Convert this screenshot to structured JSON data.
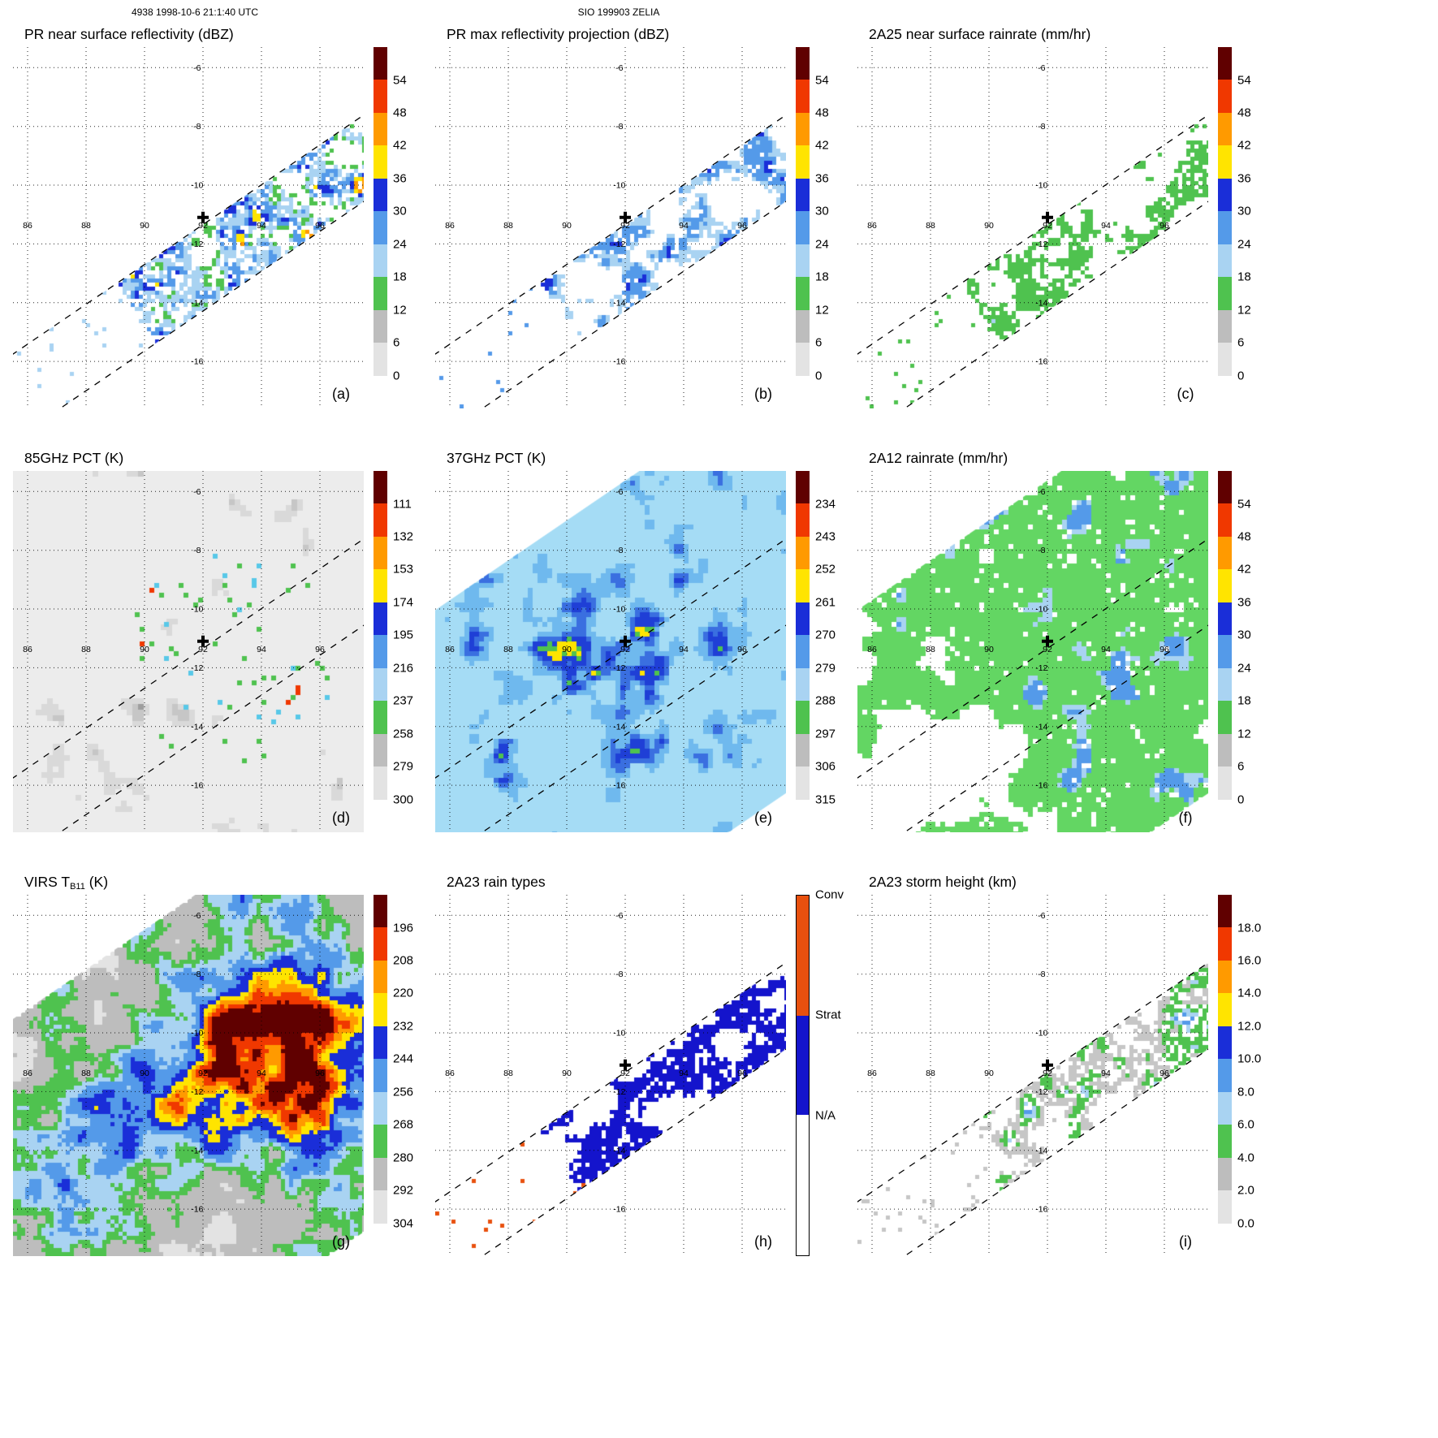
{
  "header": {
    "left": "4938 1998-10-6 21:1:40 UTC",
    "center": "SIO 199903 ZELIA"
  },
  "chart_data": {
    "type": "heatmap",
    "layout": "3x3 grid of satellite swath maps, each with a vertical colorbar on the right; dotted lat/lon graticule; dashed PR swath edge lines; bold plus sign at storm center",
    "axes": {
      "lon_ticks": [
        "86",
        "88",
        "90",
        "92",
        "94",
        "96"
      ],
      "lat_ticks": [
        "-6",
        "-8",
        "-10",
        "-12",
        "-14",
        "-16"
      ],
      "lon_values": [
        86,
        88,
        90,
        92,
        94,
        96
      ],
      "lat_values": [
        -6,
        -8,
        -10,
        -12,
        -14,
        -16
      ]
    },
    "storm_center": {
      "lon": 92,
      "lat": -11.1
    },
    "panels": [
      {
        "id": "a",
        "title": "PR near surface reflectivity (dBZ)",
        "letter": "(a)",
        "colorbar": "dbz",
        "swath": "narrow",
        "style": "pr_refl"
      },
      {
        "id": "b",
        "title": "PR max reflectivity projection (dBZ)",
        "letter": "(b)",
        "colorbar": "dbz",
        "swath": "narrow",
        "style": "pr_max"
      },
      {
        "id": "c",
        "title": "2A25 near surface rainrate (mm/hr)",
        "letter": "(c)",
        "colorbar": "dbz",
        "swath": "narrow",
        "style": "rain25"
      },
      {
        "id": "d",
        "title": "85GHz PCT (K)",
        "letter": "(d)",
        "colorbar": "pct85",
        "swath": "rect",
        "style": "pct85"
      },
      {
        "id": "e",
        "title": "37GHz PCT (K)",
        "letter": "(e)",
        "colorbar": "pct37",
        "swath": "wide",
        "style": "pct37"
      },
      {
        "id": "f",
        "title": "2A12 rainrate (mm/hr)",
        "letter": "(f)",
        "colorbar": "dbz",
        "swath": "wide",
        "style": "rain12"
      },
      {
        "id": "g",
        "title": "VIRS T",
        "title_sub": "B11",
        "title_post": " (K)",
        "letter": "(g)",
        "colorbar": "virs",
        "swath": "full",
        "style": "virs"
      },
      {
        "id": "h",
        "title": "2A23 rain types",
        "letter": "(h)",
        "colorbar": "raintype",
        "swath": "narrow",
        "style": "raintype"
      },
      {
        "id": "i",
        "title": "2A23 storm height (km)",
        "letter": "(i)",
        "colorbar": "height",
        "swath": "narrow",
        "style": "height"
      }
    ],
    "colorbars": {
      "dbz": {
        "labels": [
          "54",
          "48",
          "42",
          "36",
          "30",
          "24",
          "18",
          "12",
          "6",
          "0"
        ]
      },
      "pct85": {
        "labels": [
          "111",
          "132",
          "153",
          "174",
          "195",
          "216",
          "237",
          "258",
          "279",
          "300"
        ]
      },
      "pct37": {
        "labels": [
          "234",
          "243",
          "252",
          "261",
          "270",
          "279",
          "288",
          "297",
          "306",
          "315"
        ]
      },
      "virs": {
        "labels": [
          "196",
          "208",
          "220",
          "232",
          "244",
          "256",
          "268",
          "280",
          "292",
          "304"
        ]
      },
      "height": {
        "labels": [
          "18.0",
          "16.0",
          "14.0",
          "12.0",
          "10.0",
          "8.0",
          "6.0",
          "4.0",
          "2.0",
          "0.0"
        ]
      },
      "raintype": {
        "labels": [
          "Conv",
          "Strat",
          "N/A"
        ]
      }
    },
    "scale_colors_bottom_to_top": [
      "#ffffff",
      "#e3e3e3",
      "#bdbdbd",
      "#4fc24f",
      "#a9d3f2",
      "#549ae9",
      "#1a2ed8",
      "#ffe400",
      "#ff9a00",
      "#f03800",
      "#600000"
    ],
    "raintype_colors_top_to_bottom": [
      "#e8500e",
      "#1414cc",
      "#ffffff"
    ],
    "raintype_segment_heights_pct": [
      33.3,
      27.7,
      39.0
    ],
    "palette": {
      "white": "#ffffff",
      "gray1": "#e3e3e3",
      "gray2": "#bdbdbd",
      "gray3": "#9e9e9e",
      "grayc": "#c6c6c6",
      "grayd": "#d9d9d9",
      "green": "#4fc24f",
      "paleblue": "#a9d3f2",
      "midblue": "#549ae9",
      "darkblue": "#1a2ed8",
      "yellow": "#ffe400",
      "orange": "#ff9a00",
      "red": "#f03800",
      "maroon": "#600000",
      "pink": "#ee3aa0",
      "conv": "#e8500e",
      "strat": "#1414cc",
      "base85": "#ececec",
      "base37": "#a5dcf5",
      "mblue37": "#6fb9ee",
      "blue37": "#3a6fe0",
      "darkblue37": "#1f3fd6",
      "green12": "#63d663",
      "cyan": "#58c8e8"
    },
    "panel_styles": {
      "pr_refl": {
        "seed": 11,
        "cell": 5,
        "g": 34,
        "drop": 0.3,
        "edgeBias": 0.22,
        "th": [
          [
            0.9,
            "orange"
          ],
          [
            0.85,
            "yellow"
          ],
          [
            0.8,
            "darkblue"
          ],
          [
            0.7,
            "midblue"
          ],
          [
            0.57,
            "paleblue"
          ],
          [
            0.51,
            "green"
          ]
        ],
        "specks": {
          "color": "paleblue",
          "prob": 0.03
        }
      },
      "pr_max": {
        "seed": 22,
        "cell": 5,
        "g": 36,
        "drop": 0.15,
        "edgeBias": 0.1,
        "th": [
          [
            0.9,
            "orange"
          ],
          [
            0.83,
            "yellow"
          ],
          [
            0.73,
            "darkblue"
          ],
          [
            0.59,
            "midblue"
          ],
          [
            0.49,
            "paleblue"
          ]
        ],
        "specks": {
          "color": "midblue",
          "prob": 0.02
        }
      },
      "rain25": {
        "seed": 33,
        "cell": 5,
        "g": 34,
        "drop": 0.2,
        "th": [
          [
            0.95,
            "pink"
          ],
          [
            0.9,
            "midblue"
          ],
          [
            0.84,
            "paleblue"
          ],
          [
            0.52,
            "green"
          ]
        ],
        "specks": {
          "color": "green",
          "prob": 0.02
        }
      },
      "pct85": {
        "seed": 44,
        "cell": 7,
        "g": 50,
        "drop": 0,
        "base": "base85",
        "th": [
          [
            0.965,
            "gray3"
          ],
          [
            0.905,
            "grayc"
          ],
          [
            0.82,
            "grayd"
          ]
        ],
        "bumps": [
          [
            92.3,
            -12.0,
            0.1,
            110
          ]
        ],
        "storm": {
          "prob": 0.045,
          "r": 135,
          "lon": 92.9,
          "lat": -11.5
        }
      },
      "pct37": {
        "seed": 55,
        "cell": 6,
        "g": 44,
        "drop": 0,
        "base": "base37",
        "th": [
          [
            0.978,
            "yellow"
          ],
          [
            0.958,
            "green"
          ],
          [
            0.875,
            "darkblue37"
          ],
          [
            0.8,
            "blue37"
          ],
          [
            0.67,
            "mblue37"
          ]
        ],
        "bumps": [
          [
            91.0,
            -12.3,
            0.16,
            85
          ],
          [
            95.7,
            -11.2,
            0.12,
            60
          ]
        ]
      },
      "rain12": {
        "seed": 66,
        "cell": 6,
        "g": 55,
        "drop": 0.05,
        "tBias": [
          -0.3,
          0.52,
          -320,
          -60
        ],
        "th": [
          [
            0.97,
            "midblue"
          ],
          [
            0.925,
            "paleblue"
          ],
          [
            0.44,
            "green12"
          ]
        ]
      },
      "virs": {
        "seed": 77,
        "cell": 5,
        "g": 52,
        "drop": 0,
        "vmul": 0.62,
        "vadd": 0.02,
        "bumps": [
          [
            94.6,
            -9.3,
            0.42,
            95
          ],
          [
            89.9,
            -13.1,
            0.36,
            70
          ],
          [
            95.8,
            -12.4,
            0.3,
            65
          ],
          [
            86.8,
            -15.8,
            0.22,
            85
          ],
          [
            93.4,
            -11.3,
            0.2,
            60
          ]
        ],
        "th": [
          [
            0.96,
            "maroon"
          ],
          [
            0.89,
            "red"
          ],
          [
            0.82,
            "orange"
          ],
          [
            0.75,
            "yellow"
          ],
          [
            0.67,
            "darkblue"
          ],
          [
            0.58,
            "midblue"
          ],
          [
            0.5,
            "paleblue"
          ],
          [
            0.42,
            "green"
          ],
          [
            0.26,
            "gray2"
          ],
          [
            -9,
            "gray1"
          ]
        ]
      },
      "raintype": {
        "seed": 88,
        "cell": 5,
        "g": 30,
        "drop": 0.12,
        "edgeBias": 0.08,
        "th": [
          [
            0.94,
            "conv"
          ],
          [
            0.53,
            "strat"
          ]
        ],
        "specks": {
          "color": "conv",
          "prob": 0.02
        }
      },
      "height": {
        "seed": 99,
        "cell": 5,
        "g": 30,
        "drop": 0.28,
        "th": [
          [
            0.9,
            "midblue"
          ],
          [
            0.81,
            "paleblue"
          ],
          [
            0.62,
            "green"
          ],
          [
            0.42,
            "grayc"
          ]
        ],
        "specks": {
          "color": "grayc",
          "prob": 0.03
        }
      }
    }
  }
}
